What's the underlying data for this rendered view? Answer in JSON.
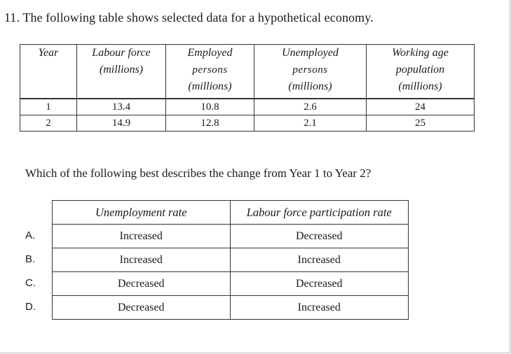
{
  "question": "11. The following table shows selected data for a hypothetical economy.",
  "data_table": {
    "headers": [
      {
        "lines": [
          "Year"
        ]
      },
      {
        "lines": [
          "Labour force",
          "(millions)"
        ]
      },
      {
        "lines": [
          "Employed",
          "persons",
          "(millions)"
        ]
      },
      {
        "lines": [
          "Unemployed",
          "persons",
          "(millions)"
        ]
      },
      {
        "lines": [
          "Working age",
          "population",
          "(millions)"
        ]
      }
    ],
    "rows": [
      [
        "1",
        "13.4",
        "10.8",
        "2.6",
        "24"
      ],
      [
        "2",
        "14.9",
        "12.8",
        "2.1",
        "25"
      ]
    ]
  },
  "prompt": "Which of the following best describes the change from Year 1 to Year 2?",
  "options_table": {
    "headers": [
      "Unemployment rate",
      "Labour force participation rate"
    ],
    "options": [
      {
        "label": "A.",
        "unemployment": "Increased",
        "participation": "Decreased"
      },
      {
        "label": "B.",
        "unemployment": "Increased",
        "participation": "Increased"
      },
      {
        "label": "C.",
        "unemployment": "Decreased",
        "participation": "Decreased"
      },
      {
        "label": "D.",
        "unemployment": "Decreased",
        "participation": "Increased"
      }
    ]
  }
}
